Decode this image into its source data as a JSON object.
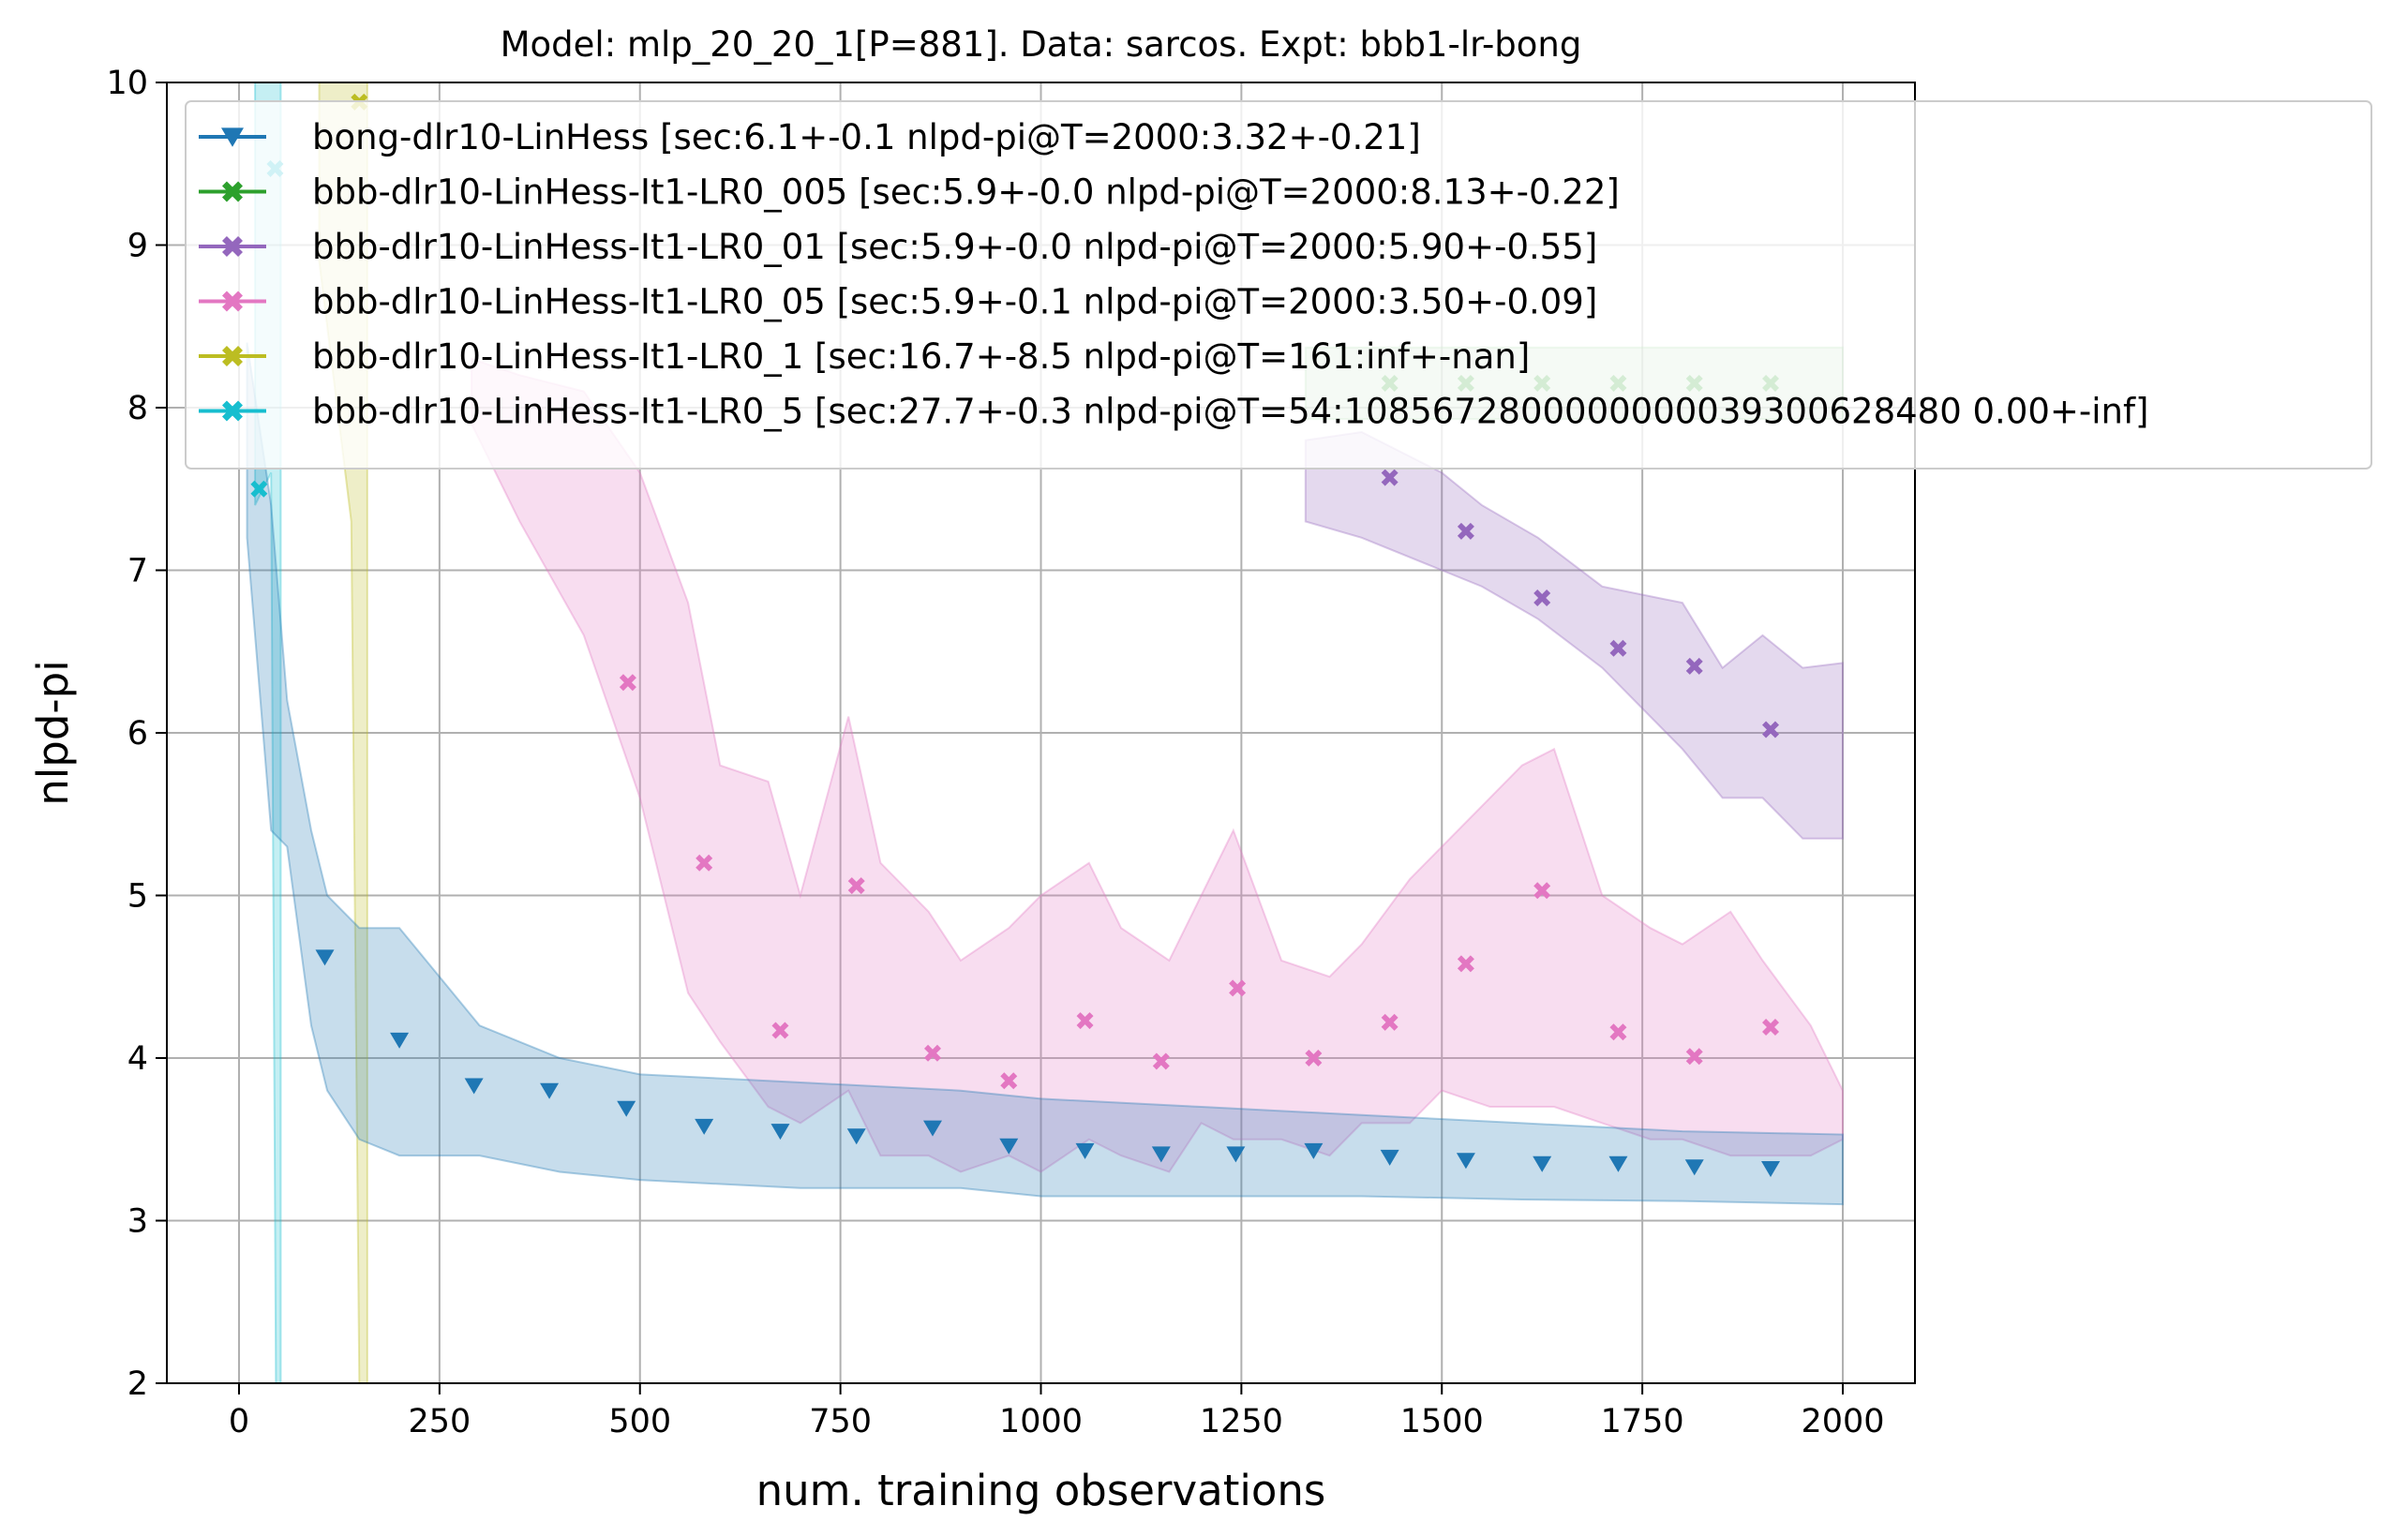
{
  "chart_data": {
    "type": "line",
    "title": "Model: mlp_20_20_1[P=881]. Data: sarcos. Expt: bbb1-lr-bong",
    "xlabel": "num. training observations",
    "ylabel": "nlpd-pi",
    "xlim": [
      -90,
      2090
    ],
    "ylim": [
      2,
      10
    ],
    "xticks": [
      0,
      250,
      500,
      750,
      1000,
      1250,
      1500,
      1750,
      2000
    ],
    "yticks": [
      2,
      3,
      4,
      5,
      6,
      7,
      8,
      9,
      10
    ],
    "grid": true,
    "legend_position": "upper right (extends beyond plot)",
    "series": [
      {
        "name": "bong-dlr10-LinHess [sec:6.1+-0.1 nlpd-pi@T=2000:3.32+-0.21]",
        "color": "#1f77b4",
        "marker": "triangle-down",
        "x": [
          107,
          200,
          293,
          387,
          483,
          580,
          675,
          770,
          865,
          960,
          1055,
          1150,
          1243,
          1340,
          1435,
          1530,
          1625,
          1720,
          1815,
          1910
        ],
        "y": [
          4.62,
          4.11,
          3.83,
          3.8,
          3.69,
          3.58,
          3.55,
          3.52,
          3.57,
          3.46,
          3.43,
          3.41,
          3.41,
          3.43,
          3.39,
          3.37,
          3.35,
          3.35,
          3.33,
          3.32
        ],
        "band": {
          "x": [
            10,
            40,
            60,
            90,
            110,
            150,
            200,
            250,
            300,
            400,
            500,
            700,
            900,
            1000,
            1200,
            1400,
            1600,
            1800,
            2000
          ],
          "upper": [
            8.4,
            7.4,
            6.2,
            5.4,
            5.0,
            4.8,
            4.8,
            4.5,
            4.2,
            4.0,
            3.9,
            3.85,
            3.8,
            3.75,
            3.7,
            3.65,
            3.6,
            3.55,
            3.53
          ],
          "lower": [
            7.2,
            5.4,
            5.3,
            4.2,
            3.8,
            3.5,
            3.4,
            3.4,
            3.4,
            3.3,
            3.25,
            3.2,
            3.2,
            3.15,
            3.15,
            3.15,
            3.13,
            3.12,
            3.1
          ]
        }
      },
      {
        "name": "bbb-dlr10-LinHess-It1-LR0_005 [sec:5.9+-0.0 nlpd-pi@T=2000:8.13+-0.22]",
        "color": "#2ca02c",
        "marker": "x-filled",
        "x": [
          1435,
          1530,
          1625,
          1720,
          1815,
          1910
        ],
        "y": [
          8.15,
          8.15,
          8.15,
          8.15,
          8.15,
          8.15
        ],
        "band": {
          "x": [
            1330,
            2000
          ],
          "upper": [
            8.37,
            8.37
          ],
          "lower": [
            7.93,
            7.93
          ]
        }
      },
      {
        "name": "bbb-dlr10-LinHess-It1-LR0_01 [sec:5.9+-0.0 nlpd-pi@T=2000:5.90+-0.55]",
        "color": "#9467bd",
        "marker": "x-filled",
        "x": [
          1435,
          1530,
          1625,
          1720,
          1815,
          1910
        ],
        "y": [
          7.57,
          7.24,
          6.83,
          6.52,
          6.41,
          6.02
        ],
        "band": {
          "x": [
            1330,
            1400,
            1500,
            1550,
            1620,
            1700,
            1800,
            1850,
            1900,
            1950,
            2000
          ],
          "upper": [
            7.8,
            7.85,
            7.6,
            7.4,
            7.2,
            6.9,
            6.8,
            6.4,
            6.6,
            6.4,
            6.43
          ],
          "lower": [
            7.3,
            7.2,
            7.0,
            6.9,
            6.7,
            6.4,
            5.9,
            5.6,
            5.6,
            5.35,
            5.35
          ]
        }
      },
      {
        "name": "bbb-dlr10-LinHess-It1-LR0_05 [sec:5.9+-0.1 nlpd-pi@T=2000:3.50+-0.09]",
        "color": "#e377c2",
        "marker": "x-filled",
        "x": [
          485,
          580,
          675,
          770,
          865,
          960,
          1055,
          1150,
          1245,
          1340,
          1435,
          1530,
          1625,
          1720,
          1815,
          1910
        ],
        "y": [
          6.31,
          5.2,
          4.17,
          5.06,
          4.03,
          3.86,
          4.23,
          3.98,
          4.43,
          4.0,
          4.22,
          4.58,
          5.03,
          4.16,
          4.01,
          4.19
        ],
        "band": {
          "x": [
            290,
            350,
            430,
            500,
            560,
            600,
            660,
            700,
            760,
            800,
            860,
            900,
            960,
            1000,
            1060,
            1100,
            1160,
            1200,
            1240,
            1300,
            1360,
            1400,
            1460,
            1500,
            1560,
            1600,
            1640,
            1700,
            1760,
            1800,
            1860,
            1900,
            1960,
            2000
          ],
          "upper": [
            8.3,
            8.2,
            8.1,
            7.6,
            6.8,
            5.8,
            5.7,
            5.0,
            6.1,
            5.2,
            4.9,
            4.6,
            4.8,
            5.0,
            5.2,
            4.8,
            4.6,
            5.0,
            5.4,
            4.6,
            4.5,
            4.7,
            5.1,
            5.3,
            5.6,
            5.8,
            5.9,
            5.0,
            4.8,
            4.7,
            4.9,
            4.6,
            4.2,
            3.8
          ],
          "lower": [
            7.9,
            7.3,
            6.6,
            5.6,
            4.4,
            4.1,
            3.7,
            3.6,
            3.8,
            3.4,
            3.4,
            3.3,
            3.4,
            3.3,
            3.5,
            3.4,
            3.3,
            3.6,
            3.5,
            3.5,
            3.4,
            3.6,
            3.6,
            3.8,
            3.7,
            3.7,
            3.7,
            3.6,
            3.5,
            3.5,
            3.4,
            3.4,
            3.4,
            3.5
          ]
        }
      },
      {
        "name": "bbb-dlr10-LinHess-It1-LR0_1 [sec:16.7+-8.5 nlpd-pi@T=161:inf+-nan]",
        "color": "#bcbd22",
        "marker": "x-filled",
        "x": [
          150
        ],
        "y": [
          9.88
        ],
        "band": {
          "x": [
            100,
            140,
            150,
            160
          ],
          "upper": [
            10,
            10,
            10,
            10
          ],
          "lower": [
            8.9,
            7.3,
            2,
            2
          ]
        }
      },
      {
        "name": "bbb-dlr10-LinHess-It1-LR0_5 [sec:27.7+-0.3 nlpd-pi@T=54:1085672800000000039300628480 0.00+-inf]",
        "color": "#17becf",
        "marker": "x-filled",
        "x": [
          25,
          45
        ],
        "y": [
          7.5,
          9.47
        ],
        "band": {
          "x": [
            20,
            40,
            46,
            52
          ],
          "upper": [
            10,
            10,
            10,
            10
          ],
          "lower": [
            7.4,
            7.6,
            2,
            2
          ]
        }
      }
    ]
  }
}
